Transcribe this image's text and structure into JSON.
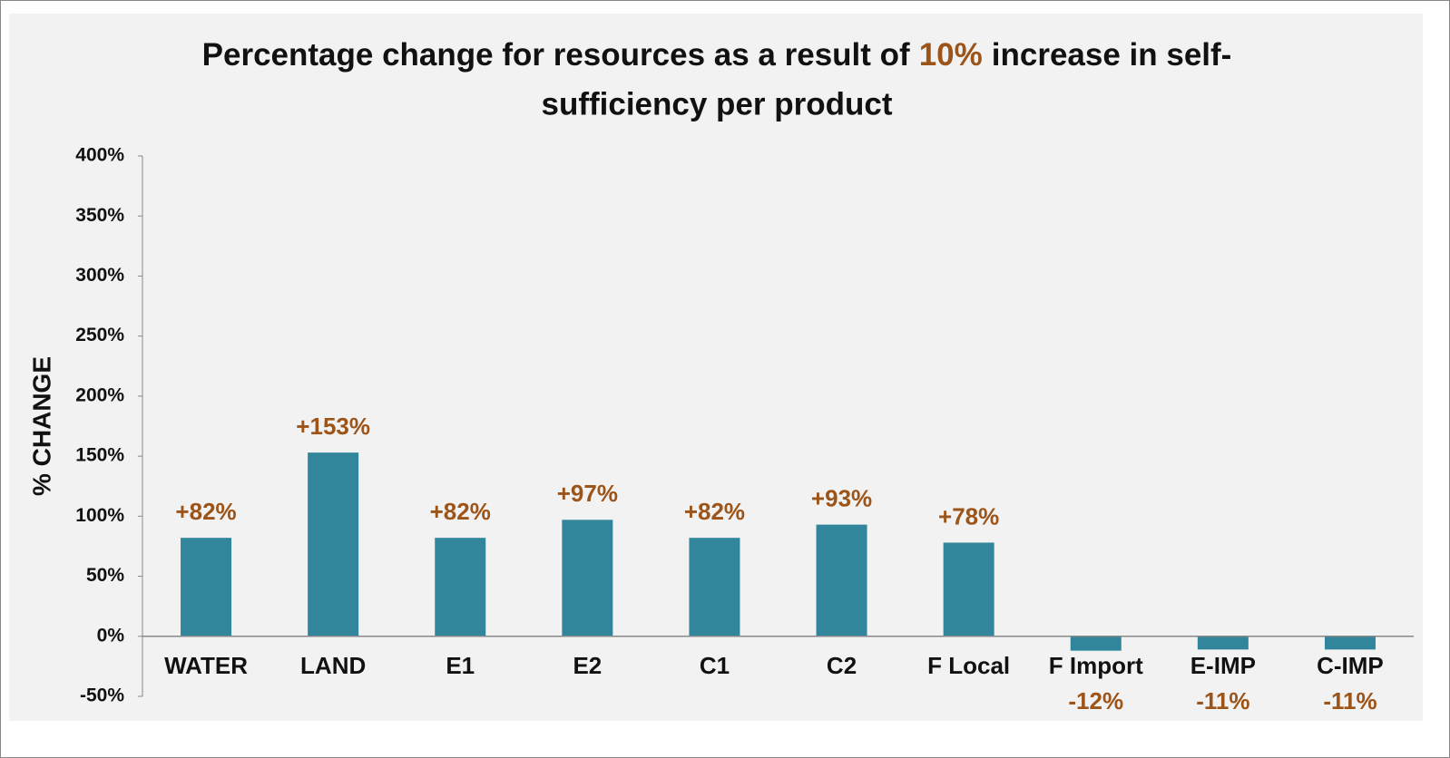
{
  "chart_data": {
    "type": "bar",
    "title": [
      "Percentage change for resources as a result of",
      "10%",
      "increase in self-",
      "sufficiency per product"
    ],
    "y_axis_label": "% CHANGE",
    "categories": [
      "WATER",
      "LAND",
      "E1",
      "E2",
      "C1",
      "C2",
      "F Local",
      "F Import",
      "E-IMP",
      "C-IMP"
    ],
    "values": [
      82,
      153,
      82,
      97,
      82,
      93,
      78,
      -12,
      -11,
      -11
    ],
    "value_labels": [
      "+82%",
      "+153%",
      "+82%",
      "+97%",
      "+82%",
      "+93%",
      "+78%",
      "-12%",
      "-11%",
      "-11%"
    ],
    "color": "#31869b",
    "label_color": "#9c5418",
    "ylim": [
      -50,
      400
    ],
    "yticks": [
      {
        "value": -50,
        "label": "-50%"
      },
      {
        "value": 0,
        "label": "0%"
      },
      {
        "value": 50,
        "label": "50%"
      },
      {
        "value": 100,
        "label": "100%"
      },
      {
        "value": 150,
        "label": "150%"
      },
      {
        "value": 200,
        "label": "200%"
      },
      {
        "value": 250,
        "label": "250%"
      },
      {
        "value": 300,
        "label": "300%"
      },
      {
        "value": 350,
        "label": "350%"
      },
      {
        "value": 400,
        "label": "400%"
      }
    ],
    "grid": false
  }
}
